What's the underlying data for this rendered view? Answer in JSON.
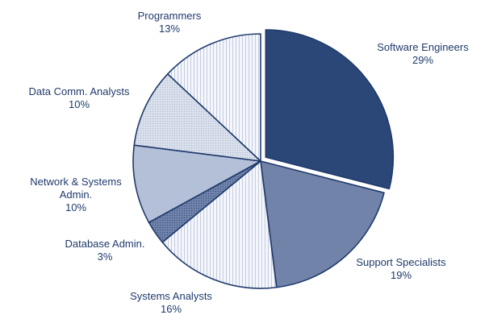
{
  "chart_data": {
    "type": "pie",
    "title": "",
    "slices": [
      {
        "label": "Software Engineers",
        "label_lines": [
          "Software Engineers"
        ],
        "value": 29,
        "value_text": "29%",
        "color": "#2b4778",
        "pattern": "solid"
      },
      {
        "label": "Support Specialists",
        "label_lines": [
          "Support Specialists"
        ],
        "value": 19,
        "value_text": "19%",
        "color": "#7283a9",
        "pattern": "solid"
      },
      {
        "label": "Systems Analysts",
        "label_lines": [
          "Systems Analysts"
        ],
        "value": 16,
        "value_text": "16%",
        "color": "#f1f4fa",
        "pattern": "vlines"
      },
      {
        "label": "Database Admin.",
        "label_lines": [
          "Database Admin."
        ],
        "value": 3,
        "value_text": "3%",
        "color": "#5b6f99",
        "pattern": "dots"
      },
      {
        "label": "Network & Systems Admin.",
        "label_lines": [
          "Network & Systems",
          "Admin."
        ],
        "value": 10,
        "value_text": "10%",
        "color": "#b4c0d8",
        "pattern": "solid"
      },
      {
        "label": "Data Comm. Analysts",
        "label_lines": [
          "Data Comm. Analysts"
        ],
        "value": 10,
        "value_text": "10%",
        "color": "#d7deeb",
        "pattern": "dots"
      },
      {
        "label": "Programmers",
        "label_lines": [
          "Programmers"
        ],
        "value": 13,
        "value_text": "13%",
        "color": "#f5f7fb",
        "pattern": "vlines"
      }
    ],
    "exploded_slice": "Software Engineers",
    "start_angle_deg": 0,
    "direction": "clockwise",
    "text_color": "#1f3a6b",
    "outline_color": "#1f3a6b"
  }
}
